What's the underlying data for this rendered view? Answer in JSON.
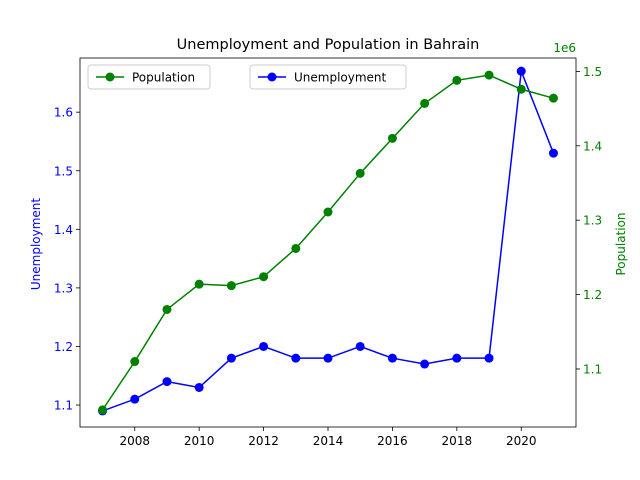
{
  "chart_data": {
    "type": "line",
    "title": "Unemployment and Population in Bahrain",
    "x": [
      2007,
      2008,
      2009,
      2010,
      2011,
      2012,
      2013,
      2014,
      2015,
      2016,
      2017,
      2018,
      2019,
      2020,
      2021
    ],
    "x_ticks": [
      "2008",
      "2010",
      "2012",
      "2014",
      "2016",
      "2018",
      "2020"
    ],
    "x_tick_values": [
      2008,
      2010,
      2012,
      2014,
      2016,
      2018,
      2020
    ],
    "xlim": [
      2006.3,
      2021.7
    ],
    "left_axis": {
      "label": "Unemployment",
      "color": "#0000ff",
      "ylim": [
        1.0625,
        1.6925
      ],
      "ticks": [
        "1.1",
        "1.2",
        "1.3",
        "1.4",
        "1.5",
        "1.6"
      ],
      "tick_values": [
        1.1,
        1.2,
        1.3,
        1.4,
        1.5,
        1.6
      ]
    },
    "right_axis": {
      "label": "Population",
      "color": "#008000",
      "offset_text": "1e6",
      "scale_factor": 1000000,
      "ylim": [
        1022000,
        1518000
      ],
      "ticks": [
        "1.1",
        "1.2",
        "1.3",
        "1.4",
        "1.5"
      ],
      "tick_values": [
        1100000,
        1200000,
        1300000,
        1400000,
        1500000
      ]
    },
    "series": [
      {
        "name": "Unemployment",
        "axis": "left",
        "color": "#0000ff",
        "values": [
          1.09,
          1.11,
          1.14,
          1.13,
          1.18,
          1.2,
          1.18,
          1.18,
          1.2,
          1.18,
          1.17,
          1.18,
          1.18,
          1.67,
          1.53
        ]
      },
      {
        "name": "Population",
        "axis": "right",
        "color": "#008000",
        "values": [
          1045000,
          1110000,
          1180000,
          1214000,
          1212000,
          1224000,
          1262000,
          1311000,
          1363000,
          1410000,
          1457000,
          1488000,
          1495000,
          1476000,
          1464000
        ]
      }
    ],
    "legends": [
      {
        "position": "upper-left",
        "series": "Population"
      },
      {
        "position": "upper-center",
        "series": "Unemployment"
      }
    ],
    "grid": false
  }
}
